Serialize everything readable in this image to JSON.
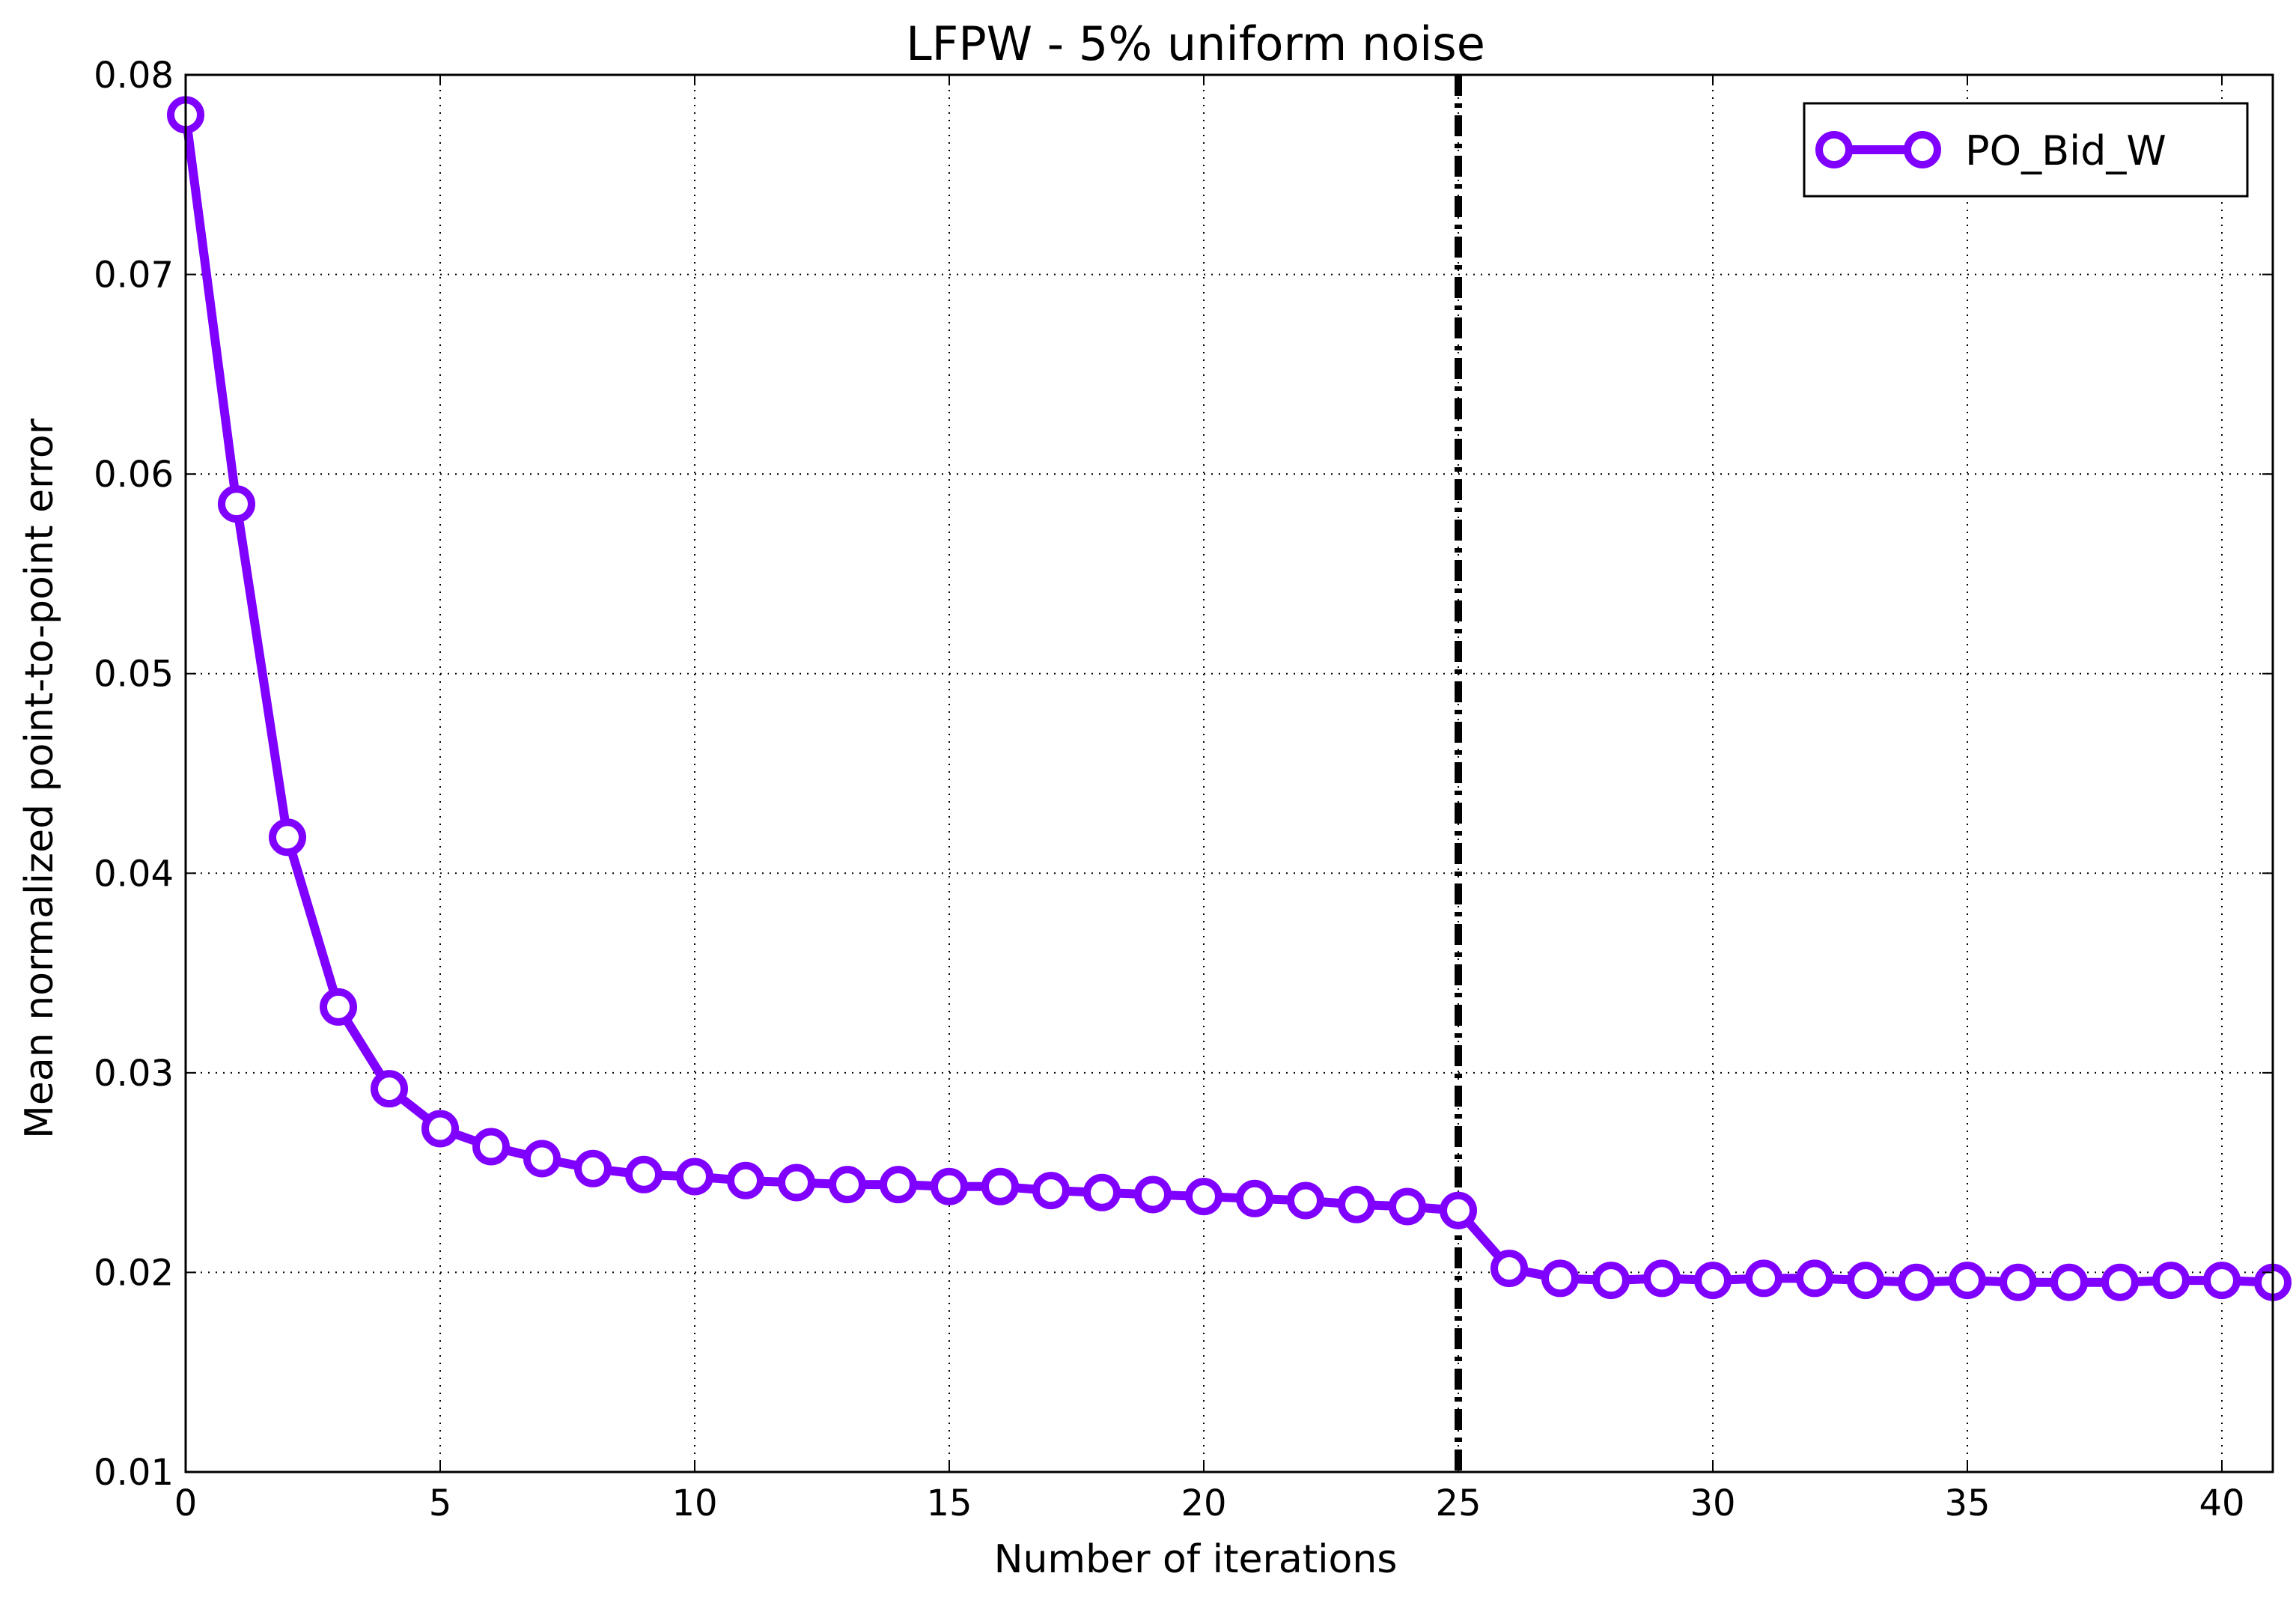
{
  "chart_data": {
    "type": "line",
    "title": "LFPW - 5% uniform noise",
    "xlabel": "Number of iterations",
    "ylabel": "Mean normalized point-to-point error",
    "xlim": [
      0,
      41
    ],
    "ylim": [
      0.01,
      0.08
    ],
    "xticks": [
      "0",
      "5",
      "10",
      "15",
      "20",
      "25",
      "30",
      "35",
      "40"
    ],
    "yticks": [
      "0.01",
      "0.02",
      "0.03",
      "0.04",
      "0.05",
      "0.06",
      "0.07",
      "0.08"
    ],
    "grid": true,
    "legend_position": "top-right",
    "vertical_line": {
      "x": 25,
      "style": "dash-dot",
      "color": "#000000"
    },
    "series": [
      {
        "name": "PO_Bid_W",
        "color": "#7f00ff",
        "marker": "circle-open",
        "x": [
          0,
          1,
          2,
          3,
          4,
          5,
          6,
          7,
          8,
          9,
          10,
          11,
          12,
          13,
          14,
          15,
          16,
          17,
          18,
          19,
          20,
          21,
          22,
          23,
          24,
          25,
          26,
          27,
          28,
          29,
          30,
          31,
          32,
          33,
          34,
          35,
          36,
          37,
          38,
          39,
          40,
          41
        ],
        "values": [
          0.078,
          0.0585,
          0.0418,
          0.0333,
          0.0292,
          0.0272,
          0.0263,
          0.0257,
          0.0252,
          0.0249,
          0.0248,
          0.0246,
          0.0245,
          0.0244,
          0.0244,
          0.0243,
          0.0243,
          0.0241,
          0.024,
          0.0239,
          0.0238,
          0.0237,
          0.0236,
          0.0234,
          0.0233,
          0.0231,
          0.0202,
          0.0197,
          0.0196,
          0.0197,
          0.0196,
          0.0197,
          0.0197,
          0.0196,
          0.0195,
          0.0196,
          0.0195,
          0.0195,
          0.0195,
          0.0196,
          0.0196,
          0.0195
        ]
      }
    ]
  }
}
